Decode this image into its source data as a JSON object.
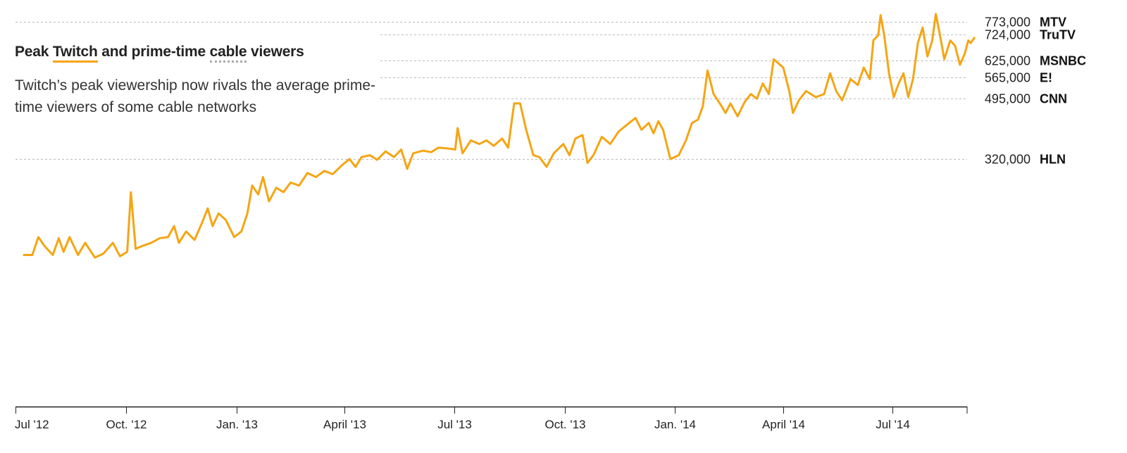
{
  "title": {
    "prefix": "Peak ",
    "highlight_twitch": "Twitch",
    "middle": " and prime-time ",
    "highlight_cable": "cable",
    "suffix": " viewers"
  },
  "subtitle": "Twitch’s peak viewership now rivals the average prime-time viewers of some cable networks",
  "colors": {
    "line": "#f5a514",
    "grid": "#bbbbbb",
    "axis": "#222222",
    "cable_underline": "#aaaaaa"
  },
  "chart_data": {
    "type": "line",
    "y_scale": "sqrt",
    "ylim": [
      0,
      800000
    ],
    "x_range": [
      "2012-07-01",
      "2014-09-01"
    ],
    "grid": "dotted horizontal at reference values",
    "x_ticks": [
      {
        "date": "2012-07-01",
        "label": "Jul '12"
      },
      {
        "date": "2012-10-01",
        "label": "Oct. '12"
      },
      {
        "date": "2013-01-01",
        "label": "Jan. '13"
      },
      {
        "date": "2013-04-01",
        "label": "April '13"
      },
      {
        "date": "2013-07-01",
        "label": "Jul '13"
      },
      {
        "date": "2013-10-01",
        "label": "Oct. '13"
      },
      {
        "date": "2014-01-01",
        "label": "Jan. '14"
      },
      {
        "date": "2014-04-01",
        "label": "April '14"
      },
      {
        "date": "2014-07-01",
        "label": "Jul '14"
      }
    ],
    "reference_lines": [
      {
        "value": 773000,
        "label": "773,000",
        "network": "MTV"
      },
      {
        "value": 724000,
        "label": "724,000",
        "network": "TruTV"
      },
      {
        "value": 625000,
        "label": "625,000",
        "network": "MSNBC"
      },
      {
        "value": 565000,
        "label": "565,000",
        "network": "E!"
      },
      {
        "value": 495000,
        "label": "495,000",
        "network": "CNN"
      },
      {
        "value": 320000,
        "label": "320,000",
        "network": "HLN"
      }
    ],
    "series": [
      {
        "points": [
          [
            "2012-07-08",
            120000
          ],
          [
            "2012-07-15",
            120000
          ],
          [
            "2012-07-20",
            150000
          ],
          [
            "2012-07-25",
            135000
          ],
          [
            "2012-08-01",
            120000
          ],
          [
            "2012-08-06",
            148000
          ],
          [
            "2012-08-10",
            125000
          ],
          [
            "2012-08-15",
            150000
          ],
          [
            "2012-08-22",
            120000
          ],
          [
            "2012-08-28",
            140000
          ],
          [
            "2012-09-05",
            116000
          ],
          [
            "2012-09-12",
            122000
          ],
          [
            "2012-09-20",
            140000
          ],
          [
            "2012-09-26",
            118000
          ],
          [
            "2012-10-02",
            125000
          ],
          [
            "2012-10-05",
            240000
          ],
          [
            "2012-10-09",
            130000
          ],
          [
            "2012-10-15",
            135000
          ],
          [
            "2012-10-22",
            140000
          ],
          [
            "2012-10-29",
            148000
          ],
          [
            "2012-11-05",
            150000
          ],
          [
            "2012-11-10",
            170000
          ],
          [
            "2012-11-14",
            140000
          ],
          [
            "2012-11-20",
            160000
          ],
          [
            "2012-11-27",
            145000
          ],
          [
            "2012-12-03",
            175000
          ],
          [
            "2012-12-08",
            205000
          ],
          [
            "2012-12-12",
            170000
          ],
          [
            "2012-12-17",
            195000
          ],
          [
            "2012-12-23",
            182000
          ],
          [
            "2012-12-30",
            150000
          ],
          [
            "2013-01-05",
            160000
          ],
          [
            "2013-01-10",
            195000
          ],
          [
            "2013-01-14",
            255000
          ],
          [
            "2013-01-19",
            235000
          ],
          [
            "2013-01-23",
            275000
          ],
          [
            "2013-01-28",
            220000
          ],
          [
            "2013-02-03",
            250000
          ],
          [
            "2013-02-09",
            240000
          ],
          [
            "2013-02-15",
            262000
          ],
          [
            "2013-02-22",
            255000
          ],
          [
            "2013-03-01",
            285000
          ],
          [
            "2013-03-08",
            275000
          ],
          [
            "2013-03-15",
            290000
          ],
          [
            "2013-03-22",
            282000
          ],
          [
            "2013-03-30",
            305000
          ],
          [
            "2013-04-05",
            320000
          ],
          [
            "2013-04-10",
            300000
          ],
          [
            "2013-04-15",
            325000
          ],
          [
            "2013-04-22",
            330000
          ],
          [
            "2013-04-28",
            318000
          ],
          [
            "2013-05-05",
            340000
          ],
          [
            "2013-05-12",
            325000
          ],
          [
            "2013-05-18",
            345000
          ],
          [
            "2013-05-23",
            295000
          ],
          [
            "2013-05-28",
            335000
          ],
          [
            "2013-06-05",
            342000
          ],
          [
            "2013-06-12",
            338000
          ],
          [
            "2013-06-18",
            350000
          ],
          [
            "2013-06-28",
            347000
          ],
          [
            "2013-07-02",
            345000
          ],
          [
            "2013-07-04",
            405000
          ],
          [
            "2013-07-08",
            335000
          ],
          [
            "2013-07-15",
            370000
          ],
          [
            "2013-07-22",
            360000
          ],
          [
            "2013-07-28",
            370000
          ],
          [
            "2013-08-03",
            355000
          ],
          [
            "2013-08-10",
            375000
          ],
          [
            "2013-08-15",
            350000
          ],
          [
            "2013-08-20",
            480000
          ],
          [
            "2013-08-25",
            480000
          ],
          [
            "2013-08-30",
            400000
          ],
          [
            "2013-09-05",
            330000
          ],
          [
            "2013-09-10",
            325000
          ],
          [
            "2013-09-16",
            300000
          ],
          [
            "2013-09-22",
            335000
          ],
          [
            "2013-09-30",
            360000
          ],
          [
            "2013-10-05",
            330000
          ],
          [
            "2013-10-10",
            375000
          ],
          [
            "2013-10-16",
            385000
          ],
          [
            "2013-10-20",
            310000
          ],
          [
            "2013-10-25",
            330000
          ],
          [
            "2013-11-01",
            380000
          ],
          [
            "2013-11-08",
            360000
          ],
          [
            "2013-11-15",
            395000
          ],
          [
            "2013-11-22",
            415000
          ],
          [
            "2013-11-29",
            435000
          ],
          [
            "2013-12-04",
            400000
          ],
          [
            "2013-12-10",
            420000
          ],
          [
            "2013-12-14",
            390000
          ],
          [
            "2013-12-18",
            425000
          ],
          [
            "2013-12-22",
            400000
          ],
          [
            "2013-12-28",
            320000
          ],
          [
            "2014-01-04",
            330000
          ],
          [
            "2014-01-10",
            370000
          ],
          [
            "2014-01-15",
            420000
          ],
          [
            "2014-01-20",
            430000
          ],
          [
            "2014-01-24",
            470000
          ],
          [
            "2014-01-28",
            590000
          ],
          [
            "2014-02-02",
            510000
          ],
          [
            "2014-02-08",
            475000
          ],
          [
            "2014-02-12",
            450000
          ],
          [
            "2014-02-16",
            480000
          ],
          [
            "2014-02-22",
            440000
          ],
          [
            "2014-02-28",
            485000
          ],
          [
            "2014-03-05",
            510000
          ],
          [
            "2014-03-10",
            495000
          ],
          [
            "2014-03-15",
            545000
          ],
          [
            "2014-03-20",
            510000
          ],
          [
            "2014-03-24",
            630000
          ],
          [
            "2014-04-01",
            600000
          ],
          [
            "2014-04-06",
            520000
          ],
          [
            "2014-04-09",
            450000
          ],
          [
            "2014-04-14",
            490000
          ],
          [
            "2014-04-20",
            520000
          ],
          [
            "2014-04-28",
            500000
          ],
          [
            "2014-05-05",
            510000
          ],
          [
            "2014-05-10",
            580000
          ],
          [
            "2014-05-15",
            520000
          ],
          [
            "2014-05-20",
            490000
          ],
          [
            "2014-05-27",
            560000
          ],
          [
            "2014-06-02",
            540000
          ],
          [
            "2014-06-07",
            600000
          ],
          [
            "2014-06-12",
            560000
          ],
          [
            "2014-06-15",
            700000
          ],
          [
            "2014-06-19",
            720000
          ],
          [
            "2014-06-21",
            800000
          ],
          [
            "2014-06-24",
            720000
          ],
          [
            "2014-06-28",
            580000
          ],
          [
            "2014-07-02",
            500000
          ],
          [
            "2014-07-06",
            545000
          ],
          [
            "2014-07-10",
            580000
          ],
          [
            "2014-07-14",
            500000
          ],
          [
            "2014-07-18",
            560000
          ],
          [
            "2014-07-22",
            690000
          ],
          [
            "2014-07-26",
            750000
          ],
          [
            "2014-07-30",
            640000
          ],
          [
            "2014-08-03",
            700000
          ],
          [
            "2014-08-06",
            805000
          ],
          [
            "2014-08-09",
            730000
          ],
          [
            "2014-08-13",
            630000
          ],
          [
            "2014-08-18",
            700000
          ],
          [
            "2014-08-22",
            680000
          ],
          [
            "2014-08-26",
            610000
          ],
          [
            "2014-08-30",
            650000
          ],
          [
            "2014-09-02",
            700000
          ],
          [
            "2014-09-04",
            690000
          ],
          [
            "2014-09-07",
            710000
          ]
        ]
      }
    ]
  }
}
